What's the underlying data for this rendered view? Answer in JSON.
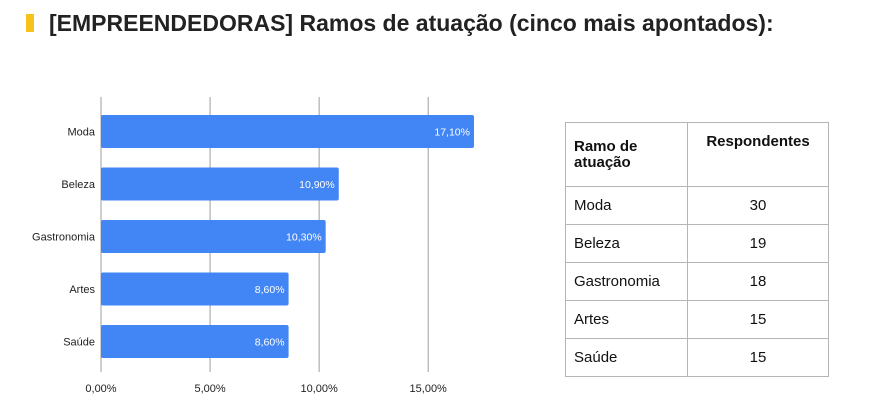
{
  "header": {
    "title": "[EMPREENDEDORAS] Ramos de atuação (cinco mais apontados):",
    "accent_color": "#f7c21b"
  },
  "chart_data": {
    "type": "bar",
    "orientation": "horizontal",
    "categories": [
      "Moda",
      "Beleza",
      "Gastronomia",
      "Artes",
      "Saúde"
    ],
    "values": [
      17.1,
      10.9,
      10.3,
      8.6,
      8.6
    ],
    "value_labels": [
      "17,10%",
      "10,90%",
      "10,30%",
      "8,60%",
      "8,60%"
    ],
    "xlim": [
      0,
      17.1
    ],
    "xticks": [
      0,
      5,
      10,
      15
    ],
    "xtick_labels": [
      "0,00%",
      "5,00%",
      "10,00%",
      "15,00%"
    ],
    "bar_color": "#4285f4",
    "grid": true,
    "legend": "none"
  },
  "table": {
    "headers": [
      "Ramo de atuação",
      "Respondentes"
    ],
    "rows": [
      [
        "Moda",
        "30"
      ],
      [
        "Beleza",
        "19"
      ],
      [
        "Gastronomia",
        "18"
      ],
      [
        "Artes",
        "15"
      ],
      [
        "Saúde",
        "15"
      ]
    ]
  }
}
